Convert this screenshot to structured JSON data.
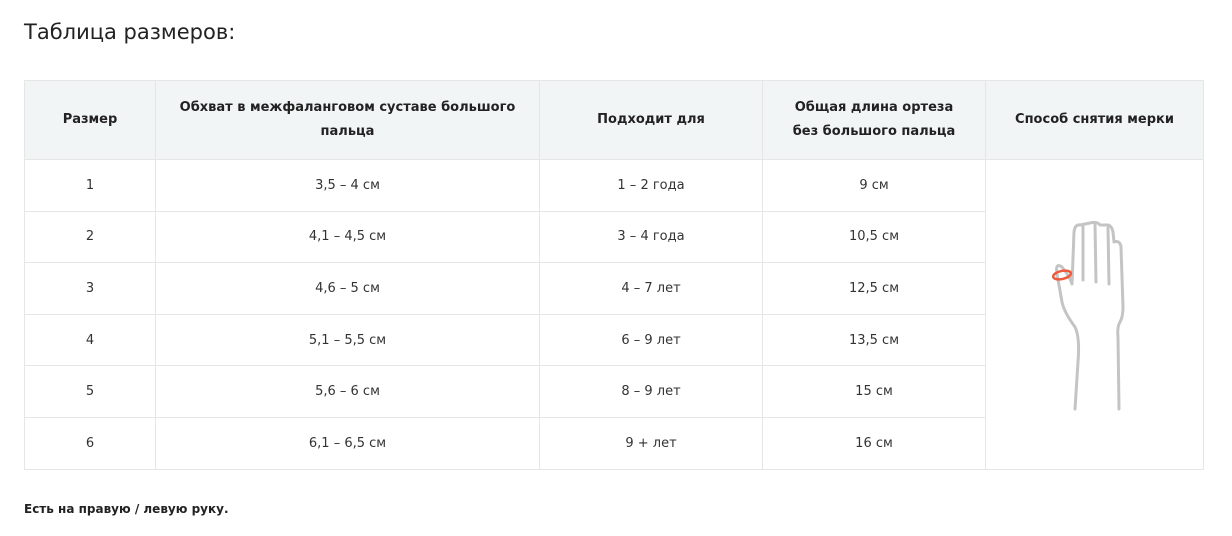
{
  "title": "Таблица размеров:",
  "table": {
    "headers": [
      "Размер",
      "Обхват в межфаланговом суставе большого пальца",
      "Подходит для",
      "Общая длина ортеза без большого пальца",
      "Способ снятия мерки"
    ],
    "rows": [
      [
        "1",
        "3,5 – 4 см",
        "1 – 2 года",
        "9 см"
      ],
      [
        "2",
        "4,1 – 4,5 см",
        "3 – 4 года",
        "10,5 см"
      ],
      [
        "3",
        "4,6 – 5 см",
        "4 – 7 лет",
        "12,5 см"
      ],
      [
        "4",
        "5,1 – 5,5 см",
        "6 – 9 лет",
        "13,5 см"
      ],
      [
        "5",
        "5,6 – 6 см",
        "8 – 9 лет",
        "15 см"
      ],
      [
        "6",
        "6,1 – 6,5 см",
        "9 + лет",
        "16 см"
      ]
    ],
    "illustration_icon": "hand-measure-icon",
    "colors": {
      "outline": "#c4c4c4",
      "measure": "#f05a3c",
      "header_bg": "#f2f5f6"
    }
  },
  "note": "Есть на правую / левую руку."
}
